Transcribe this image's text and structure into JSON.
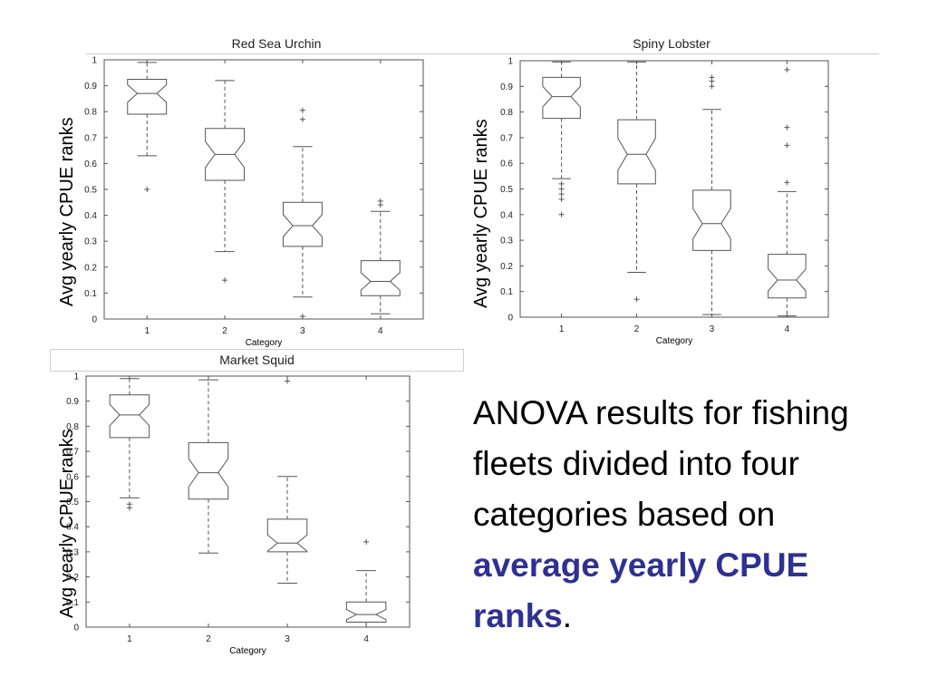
{
  "chart_data": [
    {
      "type": "boxplot",
      "title": "Red Sea Urchin",
      "ylabel": "Avg yearly CPUE ranks",
      "xlabel": "Category",
      "ylim": [
        0,
        1
      ],
      "yticks": [
        "0",
        "0.1",
        "0.2",
        "0.3",
        "0.4",
        "0.5",
        "0.6",
        "0.7",
        "0.8",
        "0.9",
        "1"
      ],
      "categories": [
        "1",
        "2",
        "3",
        "4"
      ],
      "notched": true,
      "boxes": [
        {
          "whisker_low": 0.63,
          "q1": 0.79,
          "median": 0.87,
          "q3": 0.925,
          "whisker_high": 0.99,
          "outliers": [
            0.5
          ]
        },
        {
          "whisker_low": 0.26,
          "q1": 0.535,
          "median": 0.635,
          "q3": 0.735,
          "whisker_high": 0.92,
          "outliers": [
            0.15
          ]
        },
        {
          "whisker_low": 0.085,
          "q1": 0.28,
          "median": 0.36,
          "q3": 0.45,
          "whisker_high": 0.665,
          "outliers": [
            0.01,
            0.77,
            0.805
          ]
        },
        {
          "whisker_low": 0.02,
          "q1": 0.09,
          "median": 0.145,
          "q3": 0.225,
          "whisker_high": 0.415,
          "outliers": [
            0.44,
            0.455
          ]
        }
      ]
    },
    {
      "type": "boxplot",
      "title": "Spiny Lobster",
      "ylabel": "Avg yearly CPUE ranks",
      "xlabel": "Category",
      "ylim": [
        0,
        1
      ],
      "yticks": [
        "0",
        "0.1",
        "0.2",
        "0.3",
        "0.4",
        "0.5",
        "0.6",
        "0.7",
        "0.8",
        "0.9",
        "1"
      ],
      "categories": [
        "1",
        "2",
        "3",
        "4"
      ],
      "notched": true,
      "boxes": [
        {
          "whisker_low": 0.54,
          "q1": 0.775,
          "median": 0.86,
          "q3": 0.935,
          "whisker_high": 0.995,
          "outliers": [
            0.4,
            0.46,
            0.48,
            0.5,
            0.52
          ]
        },
        {
          "whisker_low": 0.175,
          "q1": 0.52,
          "median": 0.635,
          "q3": 0.77,
          "whisker_high": 0.995,
          "outliers": [
            0.07
          ]
        },
        {
          "whisker_low": 0.01,
          "q1": 0.26,
          "median": 0.365,
          "q3": 0.495,
          "whisker_high": 0.81,
          "outliers": [
            0.9,
            0.92,
            0.935
          ]
        },
        {
          "whisker_low": 0.005,
          "q1": 0.075,
          "median": 0.145,
          "q3": 0.245,
          "whisker_high": 0.49,
          "outliers": [
            0.525,
            0.67,
            0.74,
            0.965
          ]
        }
      ]
    },
    {
      "type": "boxplot",
      "title": "Market Squid",
      "ylabel": "Avg yearly CPUE ranks",
      "xlabel": "Category",
      "ylim": [
        0,
        1
      ],
      "yticks": [
        "0",
        "0.1",
        "0.2",
        "0.3",
        "0.4",
        "0.5",
        "0.6",
        "0.7",
        "0.8",
        "0.9",
        "1"
      ],
      "categories": [
        "1",
        "2",
        "3",
        "4"
      ],
      "notched": true,
      "boxes": [
        {
          "whisker_low": 0.515,
          "q1": 0.755,
          "median": 0.845,
          "q3": 0.925,
          "whisker_high": 0.99,
          "outliers": [
            0.475,
            0.49
          ]
        },
        {
          "whisker_low": 0.295,
          "q1": 0.51,
          "median": 0.615,
          "q3": 0.735,
          "whisker_high": 0.985,
          "outliers": []
        },
        {
          "whisker_low": 0.175,
          "q1": 0.3,
          "median": 0.335,
          "q3": 0.43,
          "whisker_high": 0.6,
          "outliers": [
            0.98
          ]
        },
        {
          "whisker_low": 0.0,
          "q1": 0.02,
          "median": 0.05,
          "q3": 0.1,
          "whisker_high": 0.225,
          "outliers": [
            0.34
          ]
        }
      ]
    }
  ],
  "caption": {
    "part1": "ANOVA results for fishing fleets divided into four categories based on ",
    "highlight": "average yearly CPUE ranks",
    "end": "."
  },
  "colors": {
    "box_line": "#555555",
    "axes_line": "#555555",
    "highlight": "#2e3192"
  }
}
